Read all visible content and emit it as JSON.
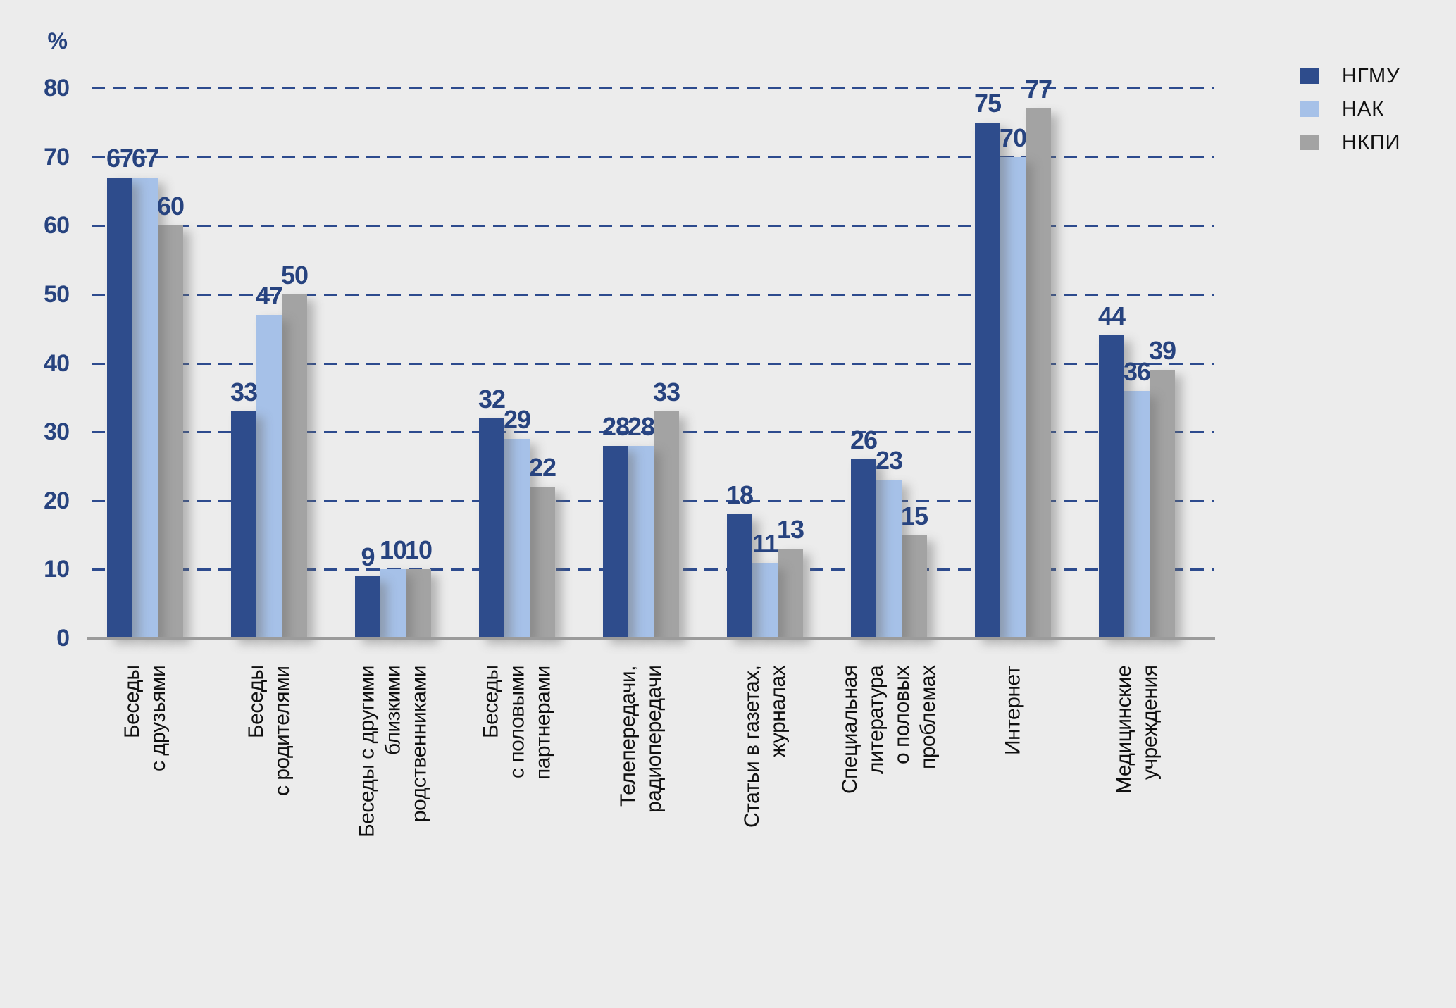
{
  "chart_data": {
    "type": "bar",
    "title": "",
    "xlabel": "",
    "ylabel": "%",
    "ylim": [
      0,
      80
    ],
    "ytick_step": 10,
    "grid": "horizontal-dashed",
    "legend_position": "top-right",
    "categories": [
      "Беседы\nс друзьями",
      "Беседы\nс родителями",
      "Беседы с другими\nблизкими\nродственниками",
      "Беседы\nс половыми\nпартнерами",
      "Телепередачи,\nрадиопередачи",
      "Статьи в газетах,\nжурналах",
      "Специальная\nлитература\nо половых\nпроблемах",
      "Интернет",
      "Медицинские\nучреждения"
    ],
    "series": [
      {
        "name": "НГМУ",
        "color": "#2E4C8C",
        "values": [
          67,
          33,
          9,
          32,
          28,
          18,
          26,
          75,
          44
        ]
      },
      {
        "name": "НАК",
        "color": "#A6C1E8",
        "values": [
          67,
          47,
          10,
          29,
          28,
          11,
          23,
          70,
          36
        ]
      },
      {
        "name": "НКПИ",
        "color": "#A3A3A3",
        "values": [
          60,
          50,
          10,
          22,
          33,
          13,
          15,
          77,
          39
        ]
      }
    ]
  },
  "colors": {
    "background": "#ECECEC",
    "gridline": "#2D4B8E",
    "axis_line": "#9B9B9B",
    "value_label": "#27437F",
    "tick_label": "#27437F",
    "category_label": "#111111",
    "legend_text": "#111111"
  }
}
